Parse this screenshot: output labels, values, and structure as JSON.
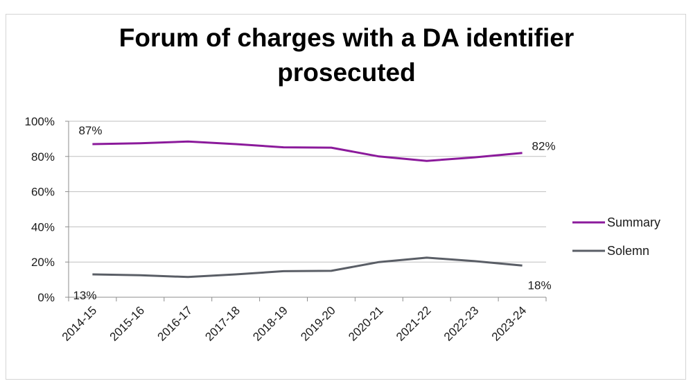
{
  "chart_data": {
    "type": "line",
    "title_lines": [
      "Forum of charges with a DA identifier",
      "prosecuted"
    ],
    "categories": [
      "2014-15",
      "2015-16",
      "2016-17",
      "2017-18",
      "2018-19",
      "2019-20",
      "2020-21",
      "2021-22",
      "2022-23",
      "2023-24"
    ],
    "y_ticks": [
      "0%",
      "20%",
      "40%",
      "60%",
      "80%",
      "100%"
    ],
    "ylim": [
      0,
      100
    ],
    "y_unit": "%",
    "grid": true,
    "legend_position": "right",
    "series": [
      {
        "name": "Summary",
        "color": "#8b1a9b",
        "values": [
          87,
          87.5,
          88.5,
          87,
          85.2,
          85,
          80,
          77.5,
          79.5,
          82
        ],
        "data_labels": [
          {
            "index": 0,
            "text": "87%"
          },
          {
            "index": 9,
            "text": "82%"
          }
        ]
      },
      {
        "name": "Solemn",
        "color": "#5a5e66",
        "values": [
          13,
          12.5,
          11.5,
          13,
          14.8,
          15,
          20,
          22.5,
          20.5,
          18
        ],
        "data_labels": [
          {
            "index": 0,
            "text": "13%"
          },
          {
            "index": 9,
            "text": "18%"
          }
        ]
      }
    ]
  }
}
